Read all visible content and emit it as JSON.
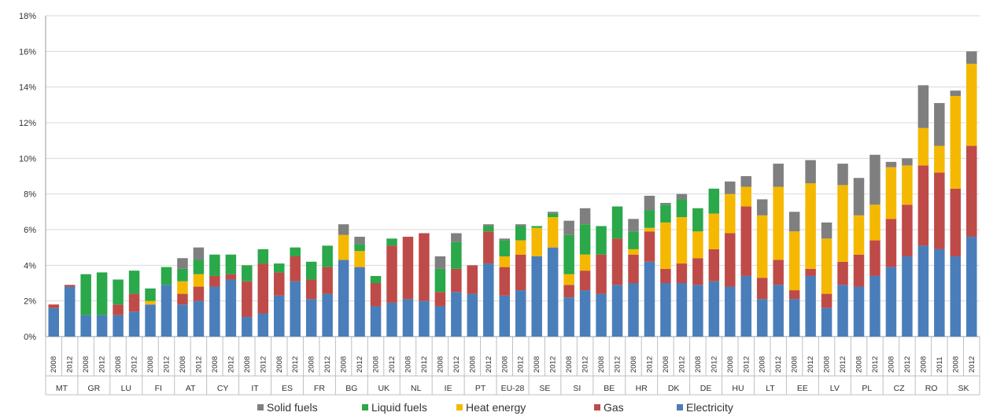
{
  "chart_data": {
    "type": "bar",
    "stacked": true,
    "title": "",
    "xlabel": "",
    "ylabel": "",
    "ylim": [
      0,
      18
    ],
    "yticks": [
      "0%",
      "2%",
      "4%",
      "6%",
      "8%",
      "10%",
      "12%",
      "14%",
      "16%",
      "18%"
    ],
    "grid": true,
    "legend_position": "bottom",
    "groups": [
      {
        "label": "MT",
        "years": [
          "2008",
          "2012"
        ]
      },
      {
        "label": "GR",
        "years": [
          "2008",
          "2012"
        ]
      },
      {
        "label": "LU",
        "years": [
          "2008",
          "2012"
        ]
      },
      {
        "label": "FI",
        "years": [
          "2008",
          "2012"
        ]
      },
      {
        "label": "AT",
        "years": [
          "2008",
          "2012"
        ]
      },
      {
        "label": "CY",
        "years": [
          "2008",
          "2012"
        ]
      },
      {
        "label": "IT",
        "years": [
          "2008",
          "2012"
        ]
      },
      {
        "label": "ES",
        "years": [
          "2008",
          "2012"
        ]
      },
      {
        "label": "FR",
        "years": [
          "2008",
          "2012"
        ]
      },
      {
        "label": "BG",
        "years": [
          "2008",
          "2012"
        ]
      },
      {
        "label": "UK",
        "years": [
          "2008",
          "2012"
        ]
      },
      {
        "label": "NL",
        "years": [
          "2008",
          "2012"
        ]
      },
      {
        "label": "IE",
        "years": [
          "2008",
          "2012"
        ]
      },
      {
        "label": "PT",
        "years": [
          "2008",
          "2012"
        ]
      },
      {
        "label": "EU-28",
        "years": [
          "2008",
          "2012"
        ]
      },
      {
        "label": "SE",
        "years": [
          "2008",
          "2012"
        ]
      },
      {
        "label": "SI",
        "years": [
          "2008",
          "2012"
        ]
      },
      {
        "label": "BE",
        "years": [
          "2008",
          "2012"
        ]
      },
      {
        "label": "HR",
        "years": [
          "2008",
          "2012"
        ]
      },
      {
        "label": "DK",
        "years": [
          "2008",
          "2012"
        ]
      },
      {
        "label": "DE",
        "years": [
          "2008",
          "2012"
        ]
      },
      {
        "label": "HU",
        "years": [
          "2008",
          "2012"
        ]
      },
      {
        "label": "LT",
        "years": [
          "2008",
          "2012"
        ]
      },
      {
        "label": "EE",
        "years": [
          "2008",
          "2012"
        ]
      },
      {
        "label": "LV",
        "years": [
          "2008",
          "2012"
        ]
      },
      {
        "label": "PL",
        "years": [
          "2008",
          "2012"
        ]
      },
      {
        "label": "CZ",
        "years": [
          "2008",
          "2012"
        ]
      },
      {
        "label": "RO",
        "years": [
          "2008",
          "2011"
        ]
      },
      {
        "label": "SK",
        "years": [
          "2008",
          "2012"
        ]
      }
    ],
    "series": [
      {
        "name": "Electricity",
        "color": "#4a7ebb",
        "values": [
          1.6,
          2.8,
          1.2,
          1.2,
          1.2,
          1.4,
          1.8,
          2.9,
          1.8,
          2.0,
          2.8,
          3.2,
          1.1,
          1.3,
          2.3,
          3.1,
          2.1,
          2.4,
          4.3,
          3.9,
          1.7,
          1.9,
          2.1,
          2.0,
          1.7,
          2.5,
          2.4,
          4.1,
          2.3,
          2.6,
          4.5,
          5.0,
          2.2,
          2.6,
          2.4,
          2.9,
          3.0,
          4.2,
          3.0,
          3.0,
          2.9,
          3.1,
          2.8,
          3.4,
          2.1,
          2.9,
          2.1,
          3.4,
          1.6,
          2.9,
          2.8,
          3.4,
          3.9,
          4.5,
          5.1,
          4.9,
          4.5,
          5.6
        ]
      },
      {
        "name": "Gas",
        "color": "#be4b48",
        "values": [
          0.2,
          0.1,
          0,
          0,
          0.6,
          1.0,
          0,
          0,
          0.6,
          0.8,
          0.6,
          0.3,
          2.0,
          2.8,
          1.3,
          1.4,
          1.1,
          1.5,
          0,
          0,
          1.3,
          3.2,
          3.5,
          3.8,
          0.8,
          1.3,
          1.6,
          1.8,
          1.6,
          2.0,
          0,
          0,
          0.7,
          1.1,
          2.2,
          2.6,
          1.6,
          1.7,
          0.8,
          1.1,
          1.5,
          1.8,
          3.0,
          3.9,
          1.2,
          1.4,
          0.5,
          0.4,
          0.8,
          1.3,
          1.8,
          2.0,
          2.7,
          2.9,
          4.5,
          4.3,
          3.8,
          5.1
        ]
      },
      {
        "name": "Heat energy",
        "color": "#f5b800",
        "values": [
          0,
          0,
          0,
          0,
          0,
          0,
          0.2,
          0,
          0.7,
          0.7,
          0,
          0,
          0,
          0,
          0,
          0,
          0,
          0,
          1.4,
          0.9,
          0,
          0,
          0,
          0,
          0,
          0,
          0,
          0,
          0.6,
          0.8,
          1.6,
          1.7,
          0.6,
          0.9,
          0,
          0,
          0.3,
          0.2,
          2.6,
          2.6,
          1.5,
          2.0,
          2.2,
          1.1,
          3.5,
          4.1,
          3.3,
          4.8,
          3.1,
          4.3,
          2.2,
          2.0,
          2.9,
          2.2,
          2.1,
          1.5,
          5.2,
          4.6
        ]
      },
      {
        "name": "Liquid fuels",
        "color": "#2aa84a",
        "values": [
          0,
          0,
          2.3,
          2.4,
          1.4,
          1.3,
          0.7,
          1.0,
          0.7,
          0.8,
          1.2,
          1.1,
          0.9,
          0.8,
          0.5,
          0.5,
          1.0,
          1.2,
          0,
          0.4,
          0.4,
          0.4,
          0,
          0,
          1.3,
          1.5,
          0,
          0.3,
          0.9,
          0.8,
          0.1,
          0.2,
          2.2,
          1.7,
          1.6,
          1.8,
          1.0,
          1.0,
          1.0,
          1.0,
          1.3,
          1.4,
          0,
          0,
          0,
          0,
          0,
          0,
          0,
          0,
          0,
          0,
          0,
          0,
          0,
          0,
          0,
          0
        ]
      },
      {
        "name": "Solid fuels",
        "color": "#7f7f7f",
        "values": [
          0,
          0,
          0,
          0,
          0,
          0,
          0,
          0,
          0.6,
          0.7,
          0,
          0,
          0,
          0,
          0,
          0,
          0,
          0,
          0.6,
          0.4,
          0,
          0,
          0,
          0,
          0.7,
          0.5,
          0,
          0.1,
          0.1,
          0.1,
          0,
          0.1,
          0.8,
          0.9,
          0,
          0,
          0.7,
          0.8,
          0.1,
          0.3,
          0,
          0,
          0.7,
          0.6,
          0.9,
          1.3,
          1.1,
          1.3,
          0.9,
          1.2,
          2.1,
          2.8,
          0.3,
          0.4,
          2.4,
          2.4,
          0.3,
          0.7
        ]
      }
    ],
    "legend": [
      "Solid fuels",
      "Liquid fuels",
      "Heat energy",
      "Gas",
      "Electricity"
    ]
  }
}
